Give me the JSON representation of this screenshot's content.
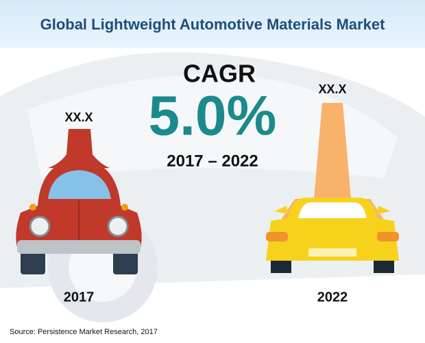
{
  "header": {
    "title": "Global Lightweight Automotive Materials Market"
  },
  "cagr": {
    "label": "CAGR",
    "value": "5.0%",
    "period": "2017 – 2022"
  },
  "left": {
    "value": "XX.X",
    "year": "2017"
  },
  "right": {
    "value": "XX.X",
    "year": "2022"
  },
  "source": "Source: Persistence Market Research, 2017"
}
